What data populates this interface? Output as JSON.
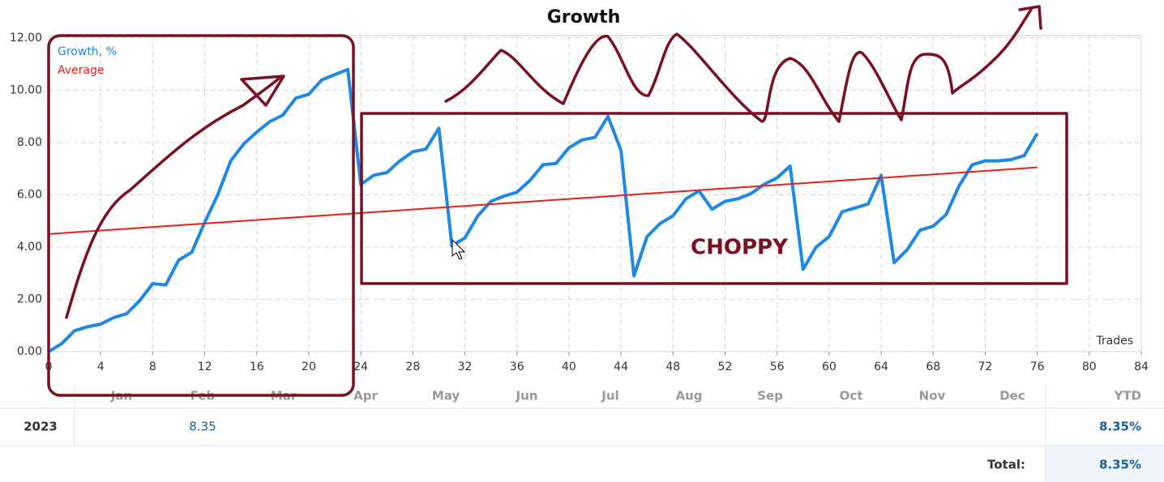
{
  "chart_data": {
    "type": "line",
    "title": "Growth",
    "xlabel": "Trades",
    "x": [
      0,
      1,
      2,
      3,
      4,
      5,
      6,
      7,
      8,
      9,
      10,
      11,
      12,
      13,
      14,
      15,
      16,
      17,
      18,
      19,
      20,
      21,
      22,
      23,
      24,
      25,
      26,
      27,
      28,
      29,
      30,
      31,
      32,
      33,
      34,
      35,
      36,
      37,
      38,
      39,
      40,
      41,
      42,
      43,
      44,
      45,
      46,
      47,
      48,
      49,
      50,
      51,
      52,
      53,
      54,
      55,
      56,
      57,
      58,
      59,
      60,
      61,
      62,
      63,
      64,
      65,
      66,
      67,
      68,
      69,
      70,
      71,
      72,
      73,
      74,
      75,
      76
    ],
    "series": [
      {
        "name": "Growth, %",
        "color": "#1e88e5",
        "values": [
          0,
          0.3,
          0.8,
          0.95,
          1.05,
          1.3,
          1.45,
          1.95,
          2.6,
          2.55,
          3.5,
          3.8,
          4.95,
          6.0,
          7.3,
          7.95,
          8.4,
          8.8,
          9.05,
          9.7,
          9.85,
          10.4,
          10.6,
          10.8,
          6.4,
          6.75,
          6.85,
          7.3,
          7.65,
          7.75,
          8.55,
          4.05,
          4.35,
          5.2,
          5.75,
          5.95,
          6.1,
          6.55,
          7.15,
          7.2,
          7.8,
          8.1,
          8.2,
          9.0,
          7.7,
          2.9,
          4.4,
          4.9,
          5.2,
          5.85,
          6.15,
          5.45,
          5.75,
          5.85,
          6.05,
          6.4,
          6.65,
          7.1,
          3.15,
          4.0,
          4.4,
          5.35,
          5.5,
          5.65,
          6.75,
          3.4,
          3.9,
          4.65,
          4.8,
          5.25,
          6.35,
          7.15,
          7.3,
          7.3,
          7.35,
          7.5,
          8.35
        ]
      },
      {
        "name": "Average",
        "color": "#e8201c",
        "x": [
          0,
          76
        ],
        "values": [
          4.5,
          7.05
        ]
      }
    ],
    "xlim": [
      0,
      84
    ],
    "xticks": [
      0,
      4,
      8,
      12,
      16,
      20,
      24,
      28,
      32,
      36,
      40,
      44,
      48,
      52,
      56,
      60,
      64,
      68,
      72,
      76,
      80,
      84
    ],
    "ylim": [
      0,
      12
    ],
    "yticks": [
      {
        "value": 0,
        "label": "0.00"
      },
      {
        "value": 2,
        "label": "2.00"
      },
      {
        "value": 4,
        "label": "4.00"
      },
      {
        "value": 6,
        "label": "6.00"
      },
      {
        "value": 8,
        "label": "8.00"
      },
      {
        "value": 10,
        "label": "10.00"
      },
      {
        "value": 12,
        "label": "12.00"
      }
    ],
    "grid": true,
    "legend": "upper left",
    "annotations": [
      "CHOPPY"
    ]
  },
  "table": {
    "columns": [
      "Jan",
      "Feb",
      "Mar",
      "Apr",
      "May",
      "Jun",
      "Jul",
      "Aug",
      "Sep",
      "Oct",
      "Nov",
      "Dec",
      "YTD"
    ],
    "rows": [
      {
        "label": "2023",
        "month_index": 1,
        "value": "8.35",
        "ytd": "8.35%"
      }
    ],
    "total_label": "Total:",
    "total": "8.35%"
  }
}
